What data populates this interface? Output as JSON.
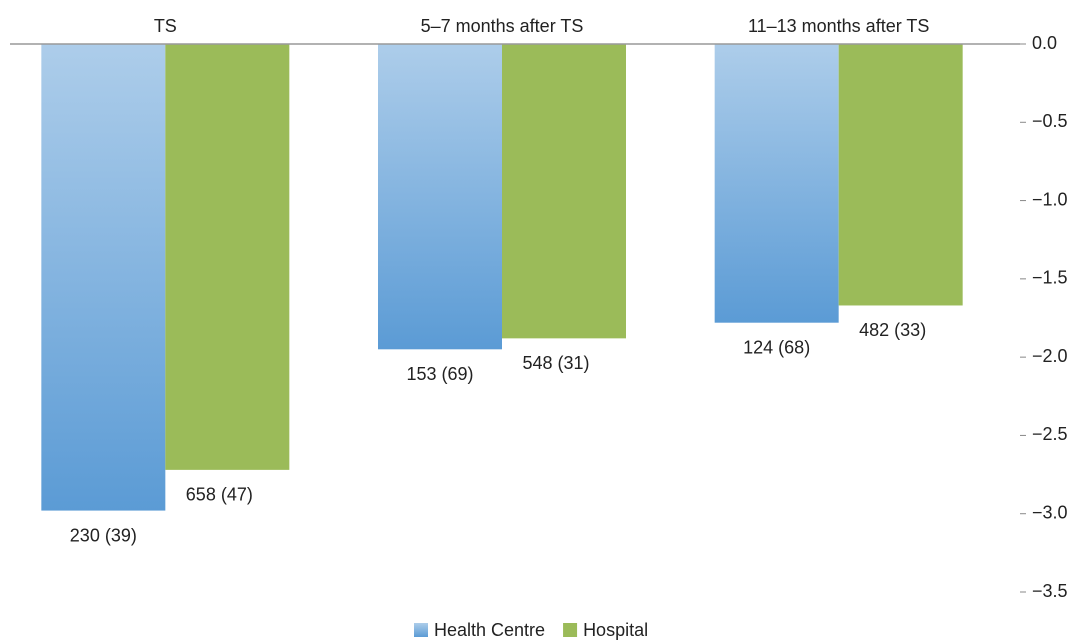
{
  "chart_data": {
    "type": "bar",
    "categories": [
      "TS",
      "5–7 months after TS",
      "11–13 months after TS"
    ],
    "series": [
      {
        "name": "Health Centre",
        "color": "#5b9bd5",
        "values": [
          -2.98,
          -1.95,
          -1.78
        ],
        "labels": [
          "230 (39)",
          "153 (69)",
          "124 (68)"
        ]
      },
      {
        "name": "Hospital",
        "color": "#9bbb59",
        "values": [
          -2.72,
          -1.88,
          -1.67
        ],
        "labels": [
          "658 (47)",
          "548 (31)",
          "482 (33)"
        ]
      }
    ],
    "ylim": [
      -3.5,
      0
    ],
    "yticks": [
      {
        "value": 0,
        "label": "0.0"
      },
      {
        "value": -0.5,
        "label": "−0.5"
      },
      {
        "value": -1,
        "label": "−1.0"
      },
      {
        "value": -1.5,
        "label": "−1.5"
      },
      {
        "value": -2,
        "label": "−2.0"
      },
      {
        "value": -2.5,
        "label": "−2.5"
      },
      {
        "value": -3,
        "label": "−3.0"
      },
      {
        "value": -3.5,
        "label": "−3.5"
      }
    ],
    "legend": "bottom"
  }
}
